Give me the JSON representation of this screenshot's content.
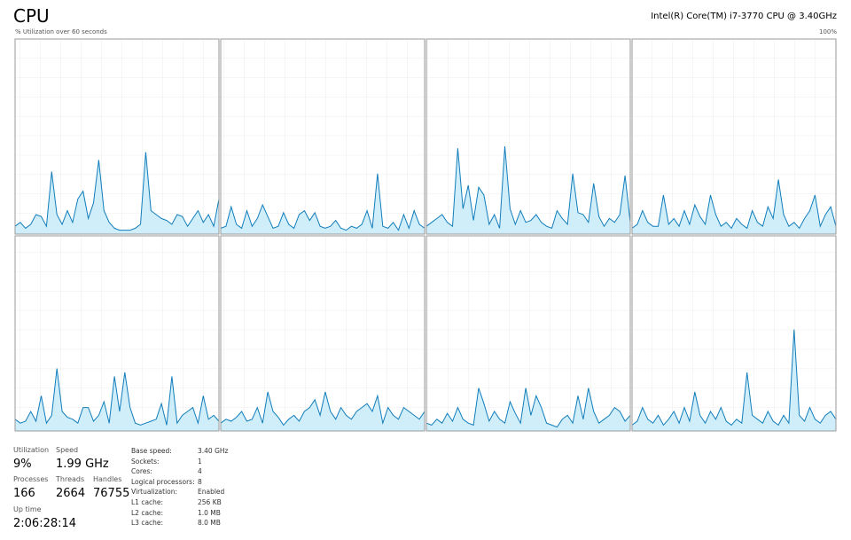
{
  "header": {
    "title": "CPU",
    "processor": "Intel(R) Core(TM) i7-3770 CPU @ 3.40GHz",
    "axis_label": "% Utilization over 60 seconds",
    "axis_max": "100%"
  },
  "chart_data": [
    {
      "type": "area",
      "color": "#117dbb",
      "ylim": [
        0,
        100
      ],
      "values": [
        4,
        6,
        3,
        5,
        10,
        9,
        4,
        32,
        10,
        5,
        12,
        6,
        18,
        22,
        8,
        16,
        38,
        12,
        6,
        3,
        2,
        2,
        2,
        3,
        5,
        42,
        12,
        10,
        8,
        7,
        5,
        10,
        9,
        4,
        8,
        12,
        6,
        10,
        4,
        18
      ]
    },
    {
      "type": "area",
      "color": "#117dbb",
      "ylim": [
        0,
        100
      ],
      "values": [
        3,
        4,
        14,
        5,
        3,
        12,
        4,
        8,
        15,
        9,
        3,
        4,
        11,
        5,
        3,
        10,
        12,
        7,
        11,
        4,
        3,
        4,
        7,
        3,
        2,
        4,
        3,
        5,
        12,
        3,
        31,
        4,
        3,
        6,
        2,
        10,
        3,
        12,
        5,
        3
      ]
    },
    {
      "type": "area",
      "color": "#117dbb",
      "ylim": [
        0,
        100
      ],
      "values": [
        4,
        6,
        8,
        10,
        6,
        4,
        44,
        13,
        25,
        7,
        24,
        20,
        5,
        10,
        3,
        45,
        13,
        5,
        12,
        6,
        7,
        10,
        6,
        4,
        3,
        12,
        8,
        5,
        31,
        11,
        10,
        6,
        26,
        9,
        4,
        8,
        6,
        10,
        30,
        6
      ]
    },
    {
      "type": "area",
      "color": "#117dbb",
      "ylim": [
        0,
        100
      ],
      "values": [
        3,
        5,
        12,
        6,
        4,
        4,
        20,
        5,
        8,
        4,
        12,
        5,
        15,
        9,
        5,
        20,
        10,
        4,
        6,
        3,
        8,
        5,
        3,
        12,
        6,
        4,
        14,
        8,
        28,
        10,
        4,
        6,
        3,
        8,
        12,
        20,
        4,
        10,
        14,
        4
      ]
    },
    {
      "type": "area",
      "color": "#117dbb",
      "ylim": [
        0,
        100
      ],
      "values": [
        6,
        4,
        5,
        10,
        5,
        18,
        4,
        8,
        32,
        10,
        7,
        6,
        4,
        12,
        12,
        5,
        8,
        15,
        4,
        28,
        10,
        30,
        12,
        4,
        3,
        4,
        5,
        6,
        14,
        3,
        28,
        4,
        8,
        10,
        12,
        4,
        18,
        6,
        8,
        5
      ]
    },
    {
      "type": "area",
      "color": "#117dbb",
      "ylim": [
        0,
        100
      ],
      "values": [
        4,
        6,
        5,
        7,
        10,
        5,
        6,
        12,
        4,
        20,
        10,
        7,
        3,
        6,
        8,
        5,
        10,
        12,
        16,
        8,
        20,
        10,
        6,
        12,
        8,
        6,
        10,
        12,
        14,
        10,
        18,
        4,
        12,
        8,
        6,
        12,
        10,
        8,
        6,
        10
      ]
    },
    {
      "type": "area",
      "color": "#117dbb",
      "ylim": [
        0,
        100
      ],
      "values": [
        4,
        3,
        6,
        4,
        9,
        5,
        12,
        6,
        4,
        3,
        22,
        14,
        5,
        10,
        6,
        4,
        15,
        9,
        4,
        22,
        8,
        18,
        12,
        4,
        3,
        2,
        6,
        8,
        4,
        18,
        6,
        22,
        10,
        4,
        6,
        8,
        12,
        10,
        5,
        8
      ]
    },
    {
      "type": "area",
      "color": "#117dbb",
      "ylim": [
        0,
        100
      ],
      "values": [
        3,
        5,
        12,
        6,
        4,
        8,
        3,
        6,
        10,
        4,
        12,
        5,
        20,
        8,
        4,
        10,
        6,
        12,
        5,
        3,
        6,
        4,
        30,
        8,
        6,
        4,
        10,
        5,
        3,
        8,
        4,
        52,
        8,
        5,
        12,
        6,
        4,
        8,
        10,
        6
      ]
    }
  ],
  "stats": {
    "utilization": {
      "label": "Utilization",
      "value": "9%"
    },
    "speed": {
      "label": "Speed",
      "value": "1.99 GHz"
    },
    "processes": {
      "label": "Processes",
      "value": "166"
    },
    "threads": {
      "label": "Threads",
      "value": "2664"
    },
    "handles": {
      "label": "Handles",
      "value": "76755"
    },
    "uptime": {
      "label": "Up time",
      "value": "2:06:28:14"
    }
  },
  "details": [
    [
      "Base speed:",
      "3.40 GHz"
    ],
    [
      "Sockets:",
      "1"
    ],
    [
      "Cores:",
      "4"
    ],
    [
      "Logical processors:",
      "8"
    ],
    [
      "Virtualization:",
      "Enabled"
    ],
    [
      "L1 cache:",
      "256 KB"
    ],
    [
      "L2 cache:",
      "1.0 MB"
    ],
    [
      "L3 cache:",
      "8.0 MB"
    ]
  ]
}
